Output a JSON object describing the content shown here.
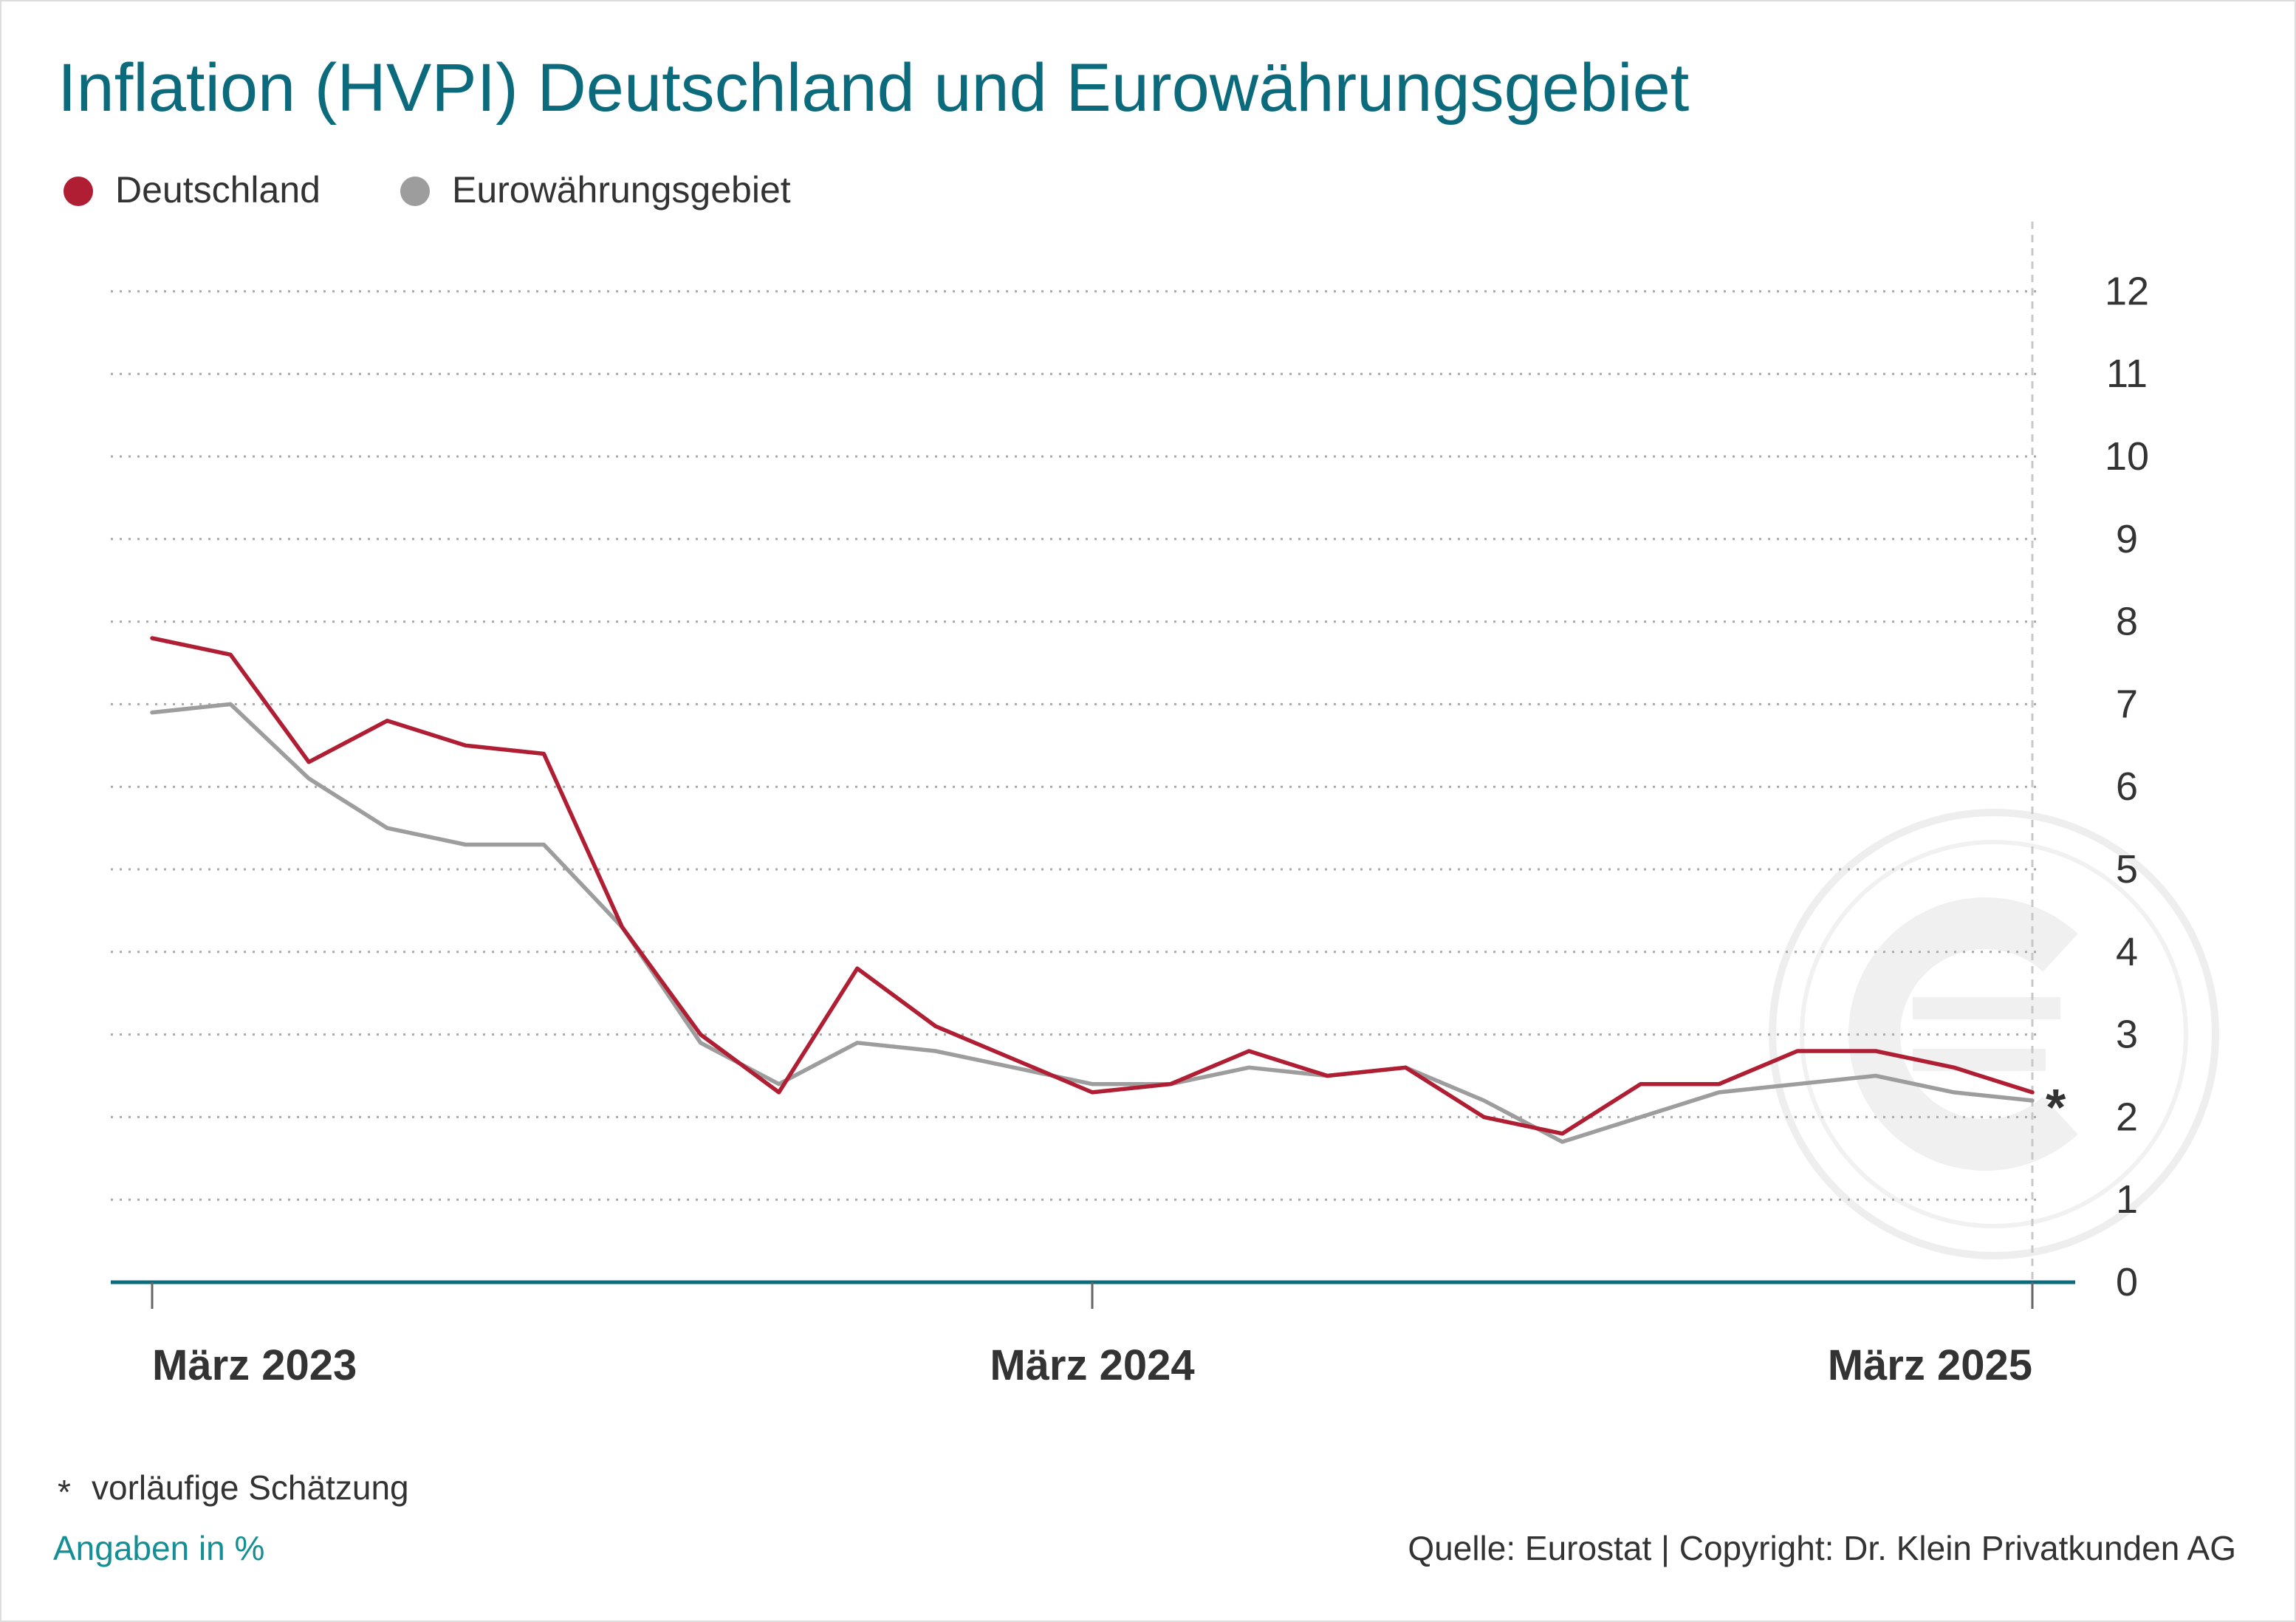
{
  "title": "Inflation (HVPI) Deutschland und Eurowährungsgebiet",
  "legend": [
    {
      "label": "Deutschland",
      "color": "#b01e33"
    },
    {
      "label": "Eurowährungsgebiet",
      "color": "#9d9d9d"
    }
  ],
  "footnote": "vorläufige Schätzung",
  "footnote_marker": "*",
  "units_note": "Angaben in %",
  "source": "Quelle: Eurostat | Copyright: Dr. Klein Privatkunden AG",
  "colors": {
    "title": "#0b6b7c",
    "axis": "#0b6b7c",
    "grid": "#aaaaaa",
    "watermark": "#eeeeee"
  },
  "watermark_icon": "euro-coin-icon",
  "chart_data": {
    "type": "line",
    "x": [
      "2023-03",
      "2023-04",
      "2023-05",
      "2023-06",
      "2023-07",
      "2023-08",
      "2023-09",
      "2023-10",
      "2023-11",
      "2023-12",
      "2024-01",
      "2024-02",
      "2024-03",
      "2024-04",
      "2024-05",
      "2024-06",
      "2024-07",
      "2024-08",
      "2024-09",
      "2024-10",
      "2024-11",
      "2024-12",
      "2025-01",
      "2025-02",
      "2025-03"
    ],
    "x_tick_labels": [
      {
        "x": "2023-03",
        "label": "März 2023"
      },
      {
        "x": "2024-03",
        "label": "März 2024"
      },
      {
        "x": "2025-03",
        "label": "März 2025"
      }
    ],
    "ylim": [
      0,
      12
    ],
    "yticks": [
      0,
      1,
      2,
      3,
      4,
      5,
      6,
      7,
      8,
      9,
      10,
      11,
      12
    ],
    "grid": true,
    "legend_position": "top-left",
    "series": [
      {
        "name": "Deutschland",
        "color": "#b01e33",
        "values": [
          7.8,
          7.6,
          6.3,
          6.8,
          6.5,
          6.4,
          4.3,
          3.0,
          2.3,
          3.8,
          3.1,
          2.7,
          2.3,
          2.4,
          2.8,
          2.5,
          2.6,
          2.0,
          1.8,
          2.4,
          2.4,
          2.8,
          2.8,
          2.6,
          2.3
        ]
      },
      {
        "name": "Eurowährungsgebiet",
        "color": "#9d9d9d",
        "values": [
          6.9,
          7.0,
          6.1,
          5.5,
          5.3,
          5.3,
          4.3,
          2.9,
          2.4,
          2.9,
          2.8,
          2.6,
          2.4,
          2.4,
          2.6,
          2.5,
          2.6,
          2.2,
          1.7,
          2.0,
          2.3,
          2.4,
          2.5,
          2.3,
          2.2
        ]
      }
    ],
    "annotations": [
      {
        "x": "2025-03",
        "series": "Deutschland",
        "text": "*"
      }
    ]
  }
}
